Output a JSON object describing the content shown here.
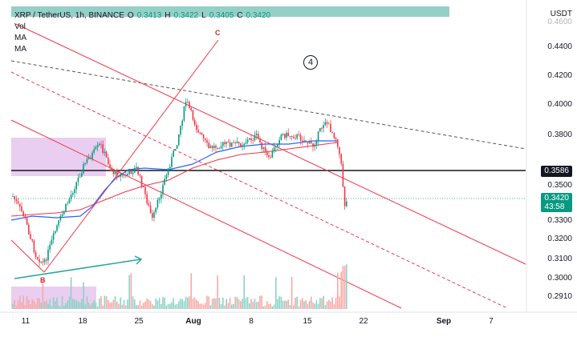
{
  "legend": {
    "symbol": "XRP / TetherUS, 1h, BINANCE",
    "o_label": "O",
    "o_value": "0.3413",
    "h_label": "H",
    "h_value": "0.3422",
    "l_label": "L",
    "l_value": "0.3405",
    "c_label": "C",
    "c_value": "0.3420",
    "vol_label": "Vol",
    "ma1_label": "MA",
    "ma2_label": "MA"
  },
  "currency": "USDT",
  "price_tags": {
    "level_line": "0.3586",
    "last_price": "0.3420",
    "countdown": "43:58"
  },
  "annotations": {
    "wave_c": "C",
    "wave_b": "B",
    "wave_4": "4"
  },
  "colors": {
    "up": "#089981",
    "down": "#f23645",
    "channel": "#f23645",
    "ma_blue": "#2962ff",
    "ma_red": "#f23645",
    "arrow": "#26a69a",
    "zone": "#d8a6e6"
  },
  "chart_data": {
    "type": "candlestick",
    "symbol": "XRP / TetherUS",
    "timeframe": "1h",
    "y_axis": {
      "ticks": [
        "0.4400",
        "0.4200",
        "0.4000",
        "0.3800",
        "0.3500",
        "0.3300",
        "0.3200",
        "0.3100",
        "0.3000",
        "0.2910"
      ],
      "top_partial_tick": "0.4600"
    },
    "x_axis": {
      "ticks": [
        "11",
        "18",
        "25",
        "Aug",
        "8",
        "15",
        "22",
        "Sep",
        "7"
      ]
    },
    "horizontal_level": 0.3586,
    "last_price": 0.342
  }
}
